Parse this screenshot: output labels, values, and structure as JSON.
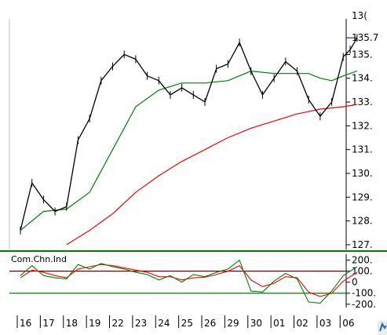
{
  "chart_data": [
    {
      "type": "line",
      "title": "",
      "price_axis": {
        "ticks": [
          "127.",
          "128.",
          "129.",
          "130.",
          "131.",
          "132.",
          "133.",
          "134.",
          "135."
        ],
        "tick_values": [
          127,
          128,
          129,
          130,
          131,
          132,
          133,
          134,
          135
        ],
        "ylim": [
          126.8,
          136.3
        ],
        "last_price_label": "135.7",
        "last_price": 135.7,
        "top_partial_label": "13("
      },
      "x_dates": [
        "16",
        "17",
        "18",
        "19",
        "22",
        "23",
        "24",
        "25",
        "26",
        "29",
        "30",
        "01",
        "02",
        "03",
        "06"
      ],
      "series": [
        {
          "name": "",
          "kind": "price",
          "color": "#000000",
          "x": [
            0,
            0.5,
            1,
            1.5,
            2,
            2.5,
            3,
            3.5,
            4,
            4.5,
            5,
            5.5,
            6,
            6.5,
            7,
            7.5,
            8,
            8.5,
            9,
            9.5,
            10,
            10.5,
            11,
            11.5,
            12,
            12.5,
            13,
            13.5,
            14,
            14.3,
            14.6
          ],
          "values": [
            127.6,
            129.6,
            128.9,
            128.4,
            128.6,
            131.4,
            132.3,
            133.9,
            134.5,
            135.0,
            134.8,
            134.1,
            133.9,
            133.3,
            133.6,
            133.3,
            133.0,
            134.4,
            134.6,
            135.5,
            134.3,
            133.3,
            134.0,
            134.7,
            134.3,
            133.1,
            132.4,
            133.0,
            134.9,
            135.2,
            135.7
          ]
        },
        {
          "name": "",
          "kind": "moving-average-short",
          "color": "#008000",
          "x": [
            0,
            1,
            2,
            3,
            4,
            5,
            6,
            7,
            8,
            9,
            10,
            11,
            12,
            12.5,
            13,
            13.5,
            14,
            14.6
          ],
          "values": [
            127.6,
            128.4,
            128.5,
            129.2,
            131.0,
            132.8,
            133.5,
            133.8,
            133.8,
            133.9,
            134.3,
            134.2,
            134.2,
            134.2,
            134.0,
            133.9,
            134.1,
            134.3
          ]
        },
        {
          "name": "",
          "kind": "moving-average-long",
          "color": "#ff0000",
          "x": [
            2,
            3,
            4,
            5,
            6,
            7,
            8,
            9,
            10,
            11,
            12,
            13,
            14,
            14.6
          ],
          "values": [
            127.0,
            127.6,
            128.3,
            129.2,
            129.9,
            130.5,
            131.0,
            131.5,
            131.9,
            132.2,
            132.5,
            132.7,
            132.8,
            132.9
          ]
        }
      ]
    },
    {
      "type": "line",
      "title": "Com.Chn.Ind",
      "y_axis": {
        "ticks": [
          "200.",
          "100.",
          "0",
          "-100.",
          "-200."
        ],
        "tick_values": [
          200,
          100,
          0,
          -100,
          -200
        ],
        "ylim": [
          -230,
          240
        ]
      },
      "reference_lines": [
        {
          "value": 100,
          "color": "#800000"
        },
        {
          "value": -100,
          "color": "#008000"
        }
      ],
      "series": [
        {
          "name": "",
          "color": "#008000",
          "x": [
            0,
            0.5,
            1,
            1.5,
            2,
            2.5,
            3,
            3.5,
            4,
            4.5,
            5,
            5.5,
            6,
            6.5,
            7,
            7.5,
            8,
            8.5,
            9,
            9.5,
            10,
            10.5,
            11,
            11.5,
            12,
            12.5,
            13,
            13.5,
            14,
            14.6
          ],
          "values": [
            60,
            150,
            60,
            40,
            30,
            160,
            120,
            170,
            140,
            120,
            90,
            70,
            20,
            60,
            0,
            70,
            50,
            90,
            120,
            200,
            -80,
            -90,
            10,
            80,
            30,
            -180,
            -190,
            -80,
            60,
            140
          ]
        },
        {
          "name": "",
          "color": "#ff0000",
          "x": [
            0,
            0.5,
            1,
            1.5,
            2,
            2.5,
            3,
            3.5,
            4,
            4.5,
            5,
            5.5,
            6,
            6.5,
            7,
            7.5,
            8,
            8.5,
            9,
            9.5,
            10,
            10.5,
            11,
            11.5,
            12,
            12.5,
            13,
            13.5,
            14,
            14.6
          ],
          "values": [
            40,
            110,
            90,
            60,
            40,
            120,
            140,
            160,
            150,
            130,
            110,
            90,
            50,
            50,
            20,
            40,
            45,
            70,
            100,
            150,
            20,
            -40,
            -10,
            50,
            40,
            -90,
            -130,
            -100,
            10,
            90
          ]
        }
      ]
    }
  ],
  "colors": {
    "price": "#000000",
    "ma_short": "#008000",
    "ma_long": "#ff0000",
    "last_price_line": "#000080",
    "separator": "#008000",
    "axis": "#000000"
  },
  "corner_icon": "chart-app-icon"
}
